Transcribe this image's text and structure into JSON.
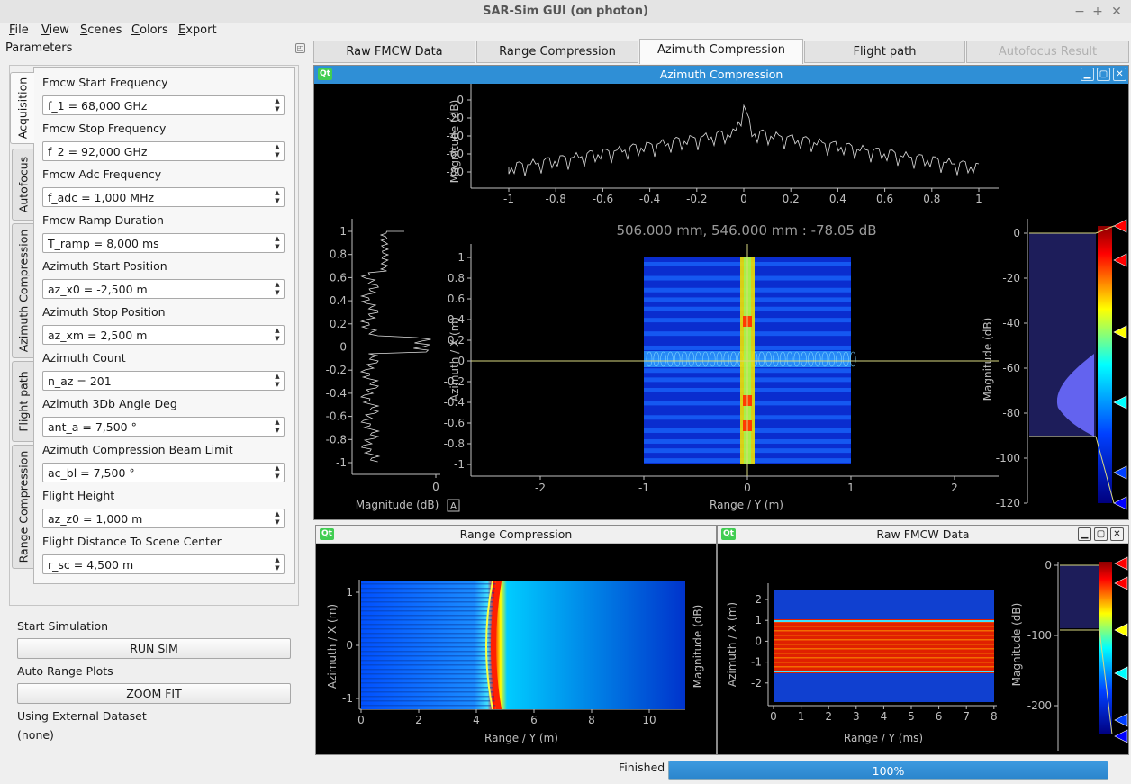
{
  "window": {
    "title": "SAR-Sim GUI (on photon)"
  },
  "menu": [
    "File",
    "View",
    "Scenes",
    "Colors",
    "Export"
  ],
  "dock": {
    "title": "Parameters"
  },
  "side_tabs": [
    "Acquisition",
    "Autofocus",
    "Azimuth Compression",
    "Flight path",
    "Range Compression"
  ],
  "params": [
    {
      "label": "Fmcw Start Frequency",
      "value": "f_1 = 68,000 GHz"
    },
    {
      "label": "Fmcw Stop Frequency",
      "value": "f_2 = 92,000 GHz"
    },
    {
      "label": "Fmcw Adc Frequency",
      "value": "f_adc = 1,000 MHz"
    },
    {
      "label": "Fmcw Ramp Duration",
      "value": "T_ramp = 8,000 ms"
    },
    {
      "label": "Azimuth Start Position",
      "value": "az_x0 = -2,500 m"
    },
    {
      "label": "Azimuth Stop Position",
      "value": "az_xm = 2,500 m"
    },
    {
      "label": "Azimuth Count",
      "value": "n_az = 201"
    },
    {
      "label": "Azimuth 3Db Angle Deg",
      "value": "ant_a = 7,500 °"
    },
    {
      "label": "Azimuth Compression Beam Limit",
      "value": "ac_bl = 7,500 °"
    },
    {
      "label": "Flight Height",
      "value": "az_z0 = 1,000 m"
    },
    {
      "label": "Flight Distance To Scene Center",
      "value": "r_sc = 4,500 m"
    }
  ],
  "controls": {
    "start_label": "Start Simulation",
    "run_button": "RUN SIM",
    "auto_label": "Auto Range Plots",
    "zoom_button": "ZOOM FIT",
    "dataset_label": "Using External Dataset",
    "dataset_value": "(none)"
  },
  "main_tabs": [
    {
      "label": "Raw FMCW Data",
      "state": "normal"
    },
    {
      "label": "Range Compression",
      "state": "normal"
    },
    {
      "label": "Azimuth Compression",
      "state": "active"
    },
    {
      "label": "Flight path",
      "state": "normal"
    },
    {
      "label": "Autofocus Result",
      "state": "disabled"
    }
  ],
  "windows": {
    "az": {
      "title": "Azimuth Compression",
      "cursor": "506.000 mm, 546.000 mm : -78.05 dB",
      "top_ylabel": "Magnitude (dB)",
      "top_yticks": [
        "0",
        "-20",
        "-40",
        "-60",
        "-80"
      ],
      "top_xticks": [
        "-1",
        "-0.8",
        "-0.6",
        "-0.4",
        "-0.2",
        "0",
        "0.2",
        "0.4",
        "0.6",
        "0.8",
        "1"
      ],
      "left_yticks": [
        "1",
        "0.8",
        "0.6",
        "0.4",
        "0.2",
        "0",
        "-0.2",
        "-0.4",
        "-0.6",
        "-0.8",
        "-1"
      ],
      "left_xtick": "0",
      "left_xlabel": "Magnitude (dB)",
      "auto_button": "A",
      "main_ylabel": "Azimuth / X (m)",
      "main_xlabel": "Range / Y (m)",
      "main_xticks": [
        "-2",
        "-1",
        "0",
        "1",
        "2"
      ],
      "main_yticks": [
        "1",
        "0.8",
        "0.6",
        "0.4",
        "0.2",
        "0",
        "-0.2",
        "-0.4",
        "-0.6",
        "-0.8",
        "-1"
      ],
      "hist_ylabel": "Magnitude (dB)",
      "hist_ticks": [
        "0",
        "-20",
        "-40",
        "-60",
        "-80",
        "-100",
        "-120"
      ]
    },
    "rc": {
      "title": "Range Compression",
      "ylabel": "Azimuth / X (m)",
      "xlabel": "Range / Y (m)",
      "yticks": [
        "1",
        "0",
        "-1"
      ],
      "xticks": [
        "0",
        "2",
        "4",
        "6",
        "8",
        "10"
      ],
      "side_ylabel": "Magnitude (dB)"
    },
    "raw": {
      "title": "Raw FMCW Data",
      "ylabel": "Azimuth / X (m)",
      "xlabel": "Range / Y (ms)",
      "yticks": [
        "2",
        "1",
        "0",
        "-1",
        "-2"
      ],
      "xticks": [
        "0",
        "1",
        "2",
        "3",
        "4",
        "5",
        "6",
        "7",
        "8"
      ],
      "hist_ylabel": "Magnitude (dB)",
      "hist_ticks": [
        "0",
        "-100",
        "-200"
      ]
    }
  },
  "status": {
    "text": "Finished",
    "progress": "100%",
    "progress_value": 1.0
  },
  "colors": {
    "accent": "#2f8fd6",
    "qt": "#41cd52"
  }
}
